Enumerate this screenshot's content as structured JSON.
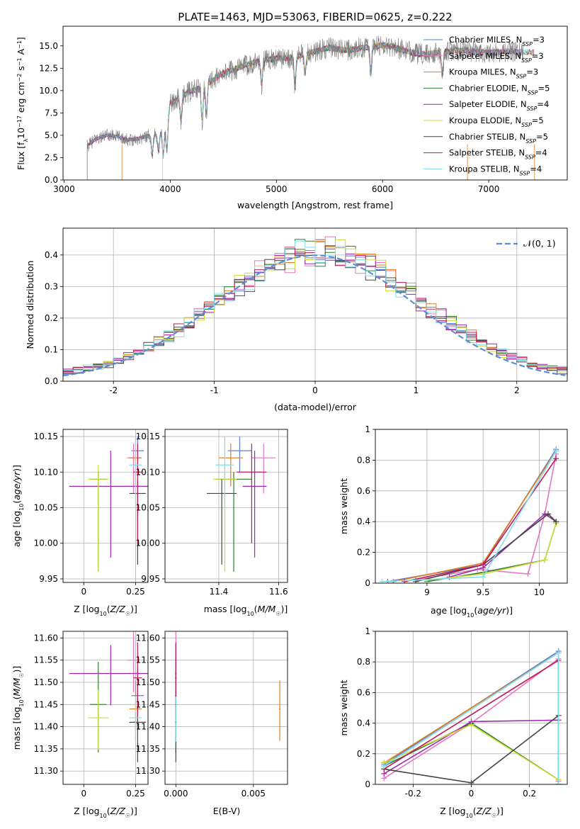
{
  "colors": {
    "Chabrier MILES": "#5b7fd9",
    "Salpeter MILES": "#e377c2",
    "Kroupa MILES": "#e07b1a",
    "Chabrier ELODIE": "#2e7d32",
    "Salpeter ELODIE": "#9c27b0",
    "Kroupa ELODIE": "#cddc39",
    "Chabrier STELIB": "#444444",
    "Salpeter STELIB": "#c2185b",
    "Kroupa STELIB": "#80deea",
    "normal": "#5b8ed6",
    "spectrum": "#7f7f7f"
  },
  "chart_data": [
    {
      "id": "spectrum",
      "type": "line",
      "title": "PLATE=1463, MJD=53063, FIBERID=0625, z=0.222",
      "xlabel": "wavelength [Angstrom, rest frame]",
      "ylabel": "Flux [f_λ10^-17 erg cm^-2 s^-1 A^-1]",
      "xlim": [
        2990,
        7740
      ],
      "ylim": [
        0,
        17.2
      ],
      "xticks": [
        3000,
        4000,
        5000,
        6000,
        7000
      ],
      "yticks": [
        0.0,
        2.5,
        5.0,
        7.5,
        10.0,
        12.5,
        15.0
      ],
      "ytick_labels": [
        "0.0",
        "2.5",
        "5.0",
        "7.5",
        "10.0",
        "12.5",
        "15.0"
      ],
      "legend": "right",
      "legend_entries": [
        "Chabrier MILES, N_SSP=3",
        "Salpeter MILES, N_SSP=3",
        "Kroupa MILES, N_SSP=3",
        "Chabrier ELODIE, N_SSP=5",
        "Salpeter ELODIE, N_SSP=4",
        "Kroupa ELODIE, N_SSP=5",
        "Chabrier STELIB, N_SSP=5",
        "Salpeter STELIB, N_SSP=4",
        "Kroupa STELIB, N_SSP=4"
      ],
      "continuum_x": [
        3220,
        3300,
        3400,
        3500,
        3600,
        3700,
        3800,
        3900,
        3950,
        4000,
        4100,
        4200,
        4300,
        4400,
        4500,
        4600,
        4700,
        4800,
        4900,
        5000,
        5100,
        5200,
        5300,
        5400,
        5500,
        5600,
        5700,
        5800,
        5900,
        6000,
        6100,
        6200,
        6300,
        6400,
        6500,
        6600,
        6700,
        6800,
        6900,
        7000,
        7100,
        7200,
        7300,
        7400
      ],
      "continuum_y": [
        3.8,
        4.6,
        5.0,
        4.9,
        4.5,
        4.6,
        5.0,
        5.2,
        6.0,
        8.6,
        9.3,
        10.0,
        10.3,
        11.2,
        12.0,
        12.3,
        12.8,
        13.2,
        13.4,
        13.6,
        13.6,
        13.9,
        14.2,
        14.5,
        14.8,
        14.6,
        14.5,
        14.8,
        14.9,
        15.1,
        14.9,
        14.5,
        14.2,
        14.0,
        14.2,
        14.4,
        14.5,
        14.5,
        14.3,
        14.3,
        14.3,
        14.4,
        14.3,
        14.3
      ]
    },
    {
      "id": "residuals",
      "type": "step",
      "xlabel": "(data-model)/error",
      "ylabel": "Normed distribution",
      "xlim": [
        -2.5,
        2.5
      ],
      "ylim": [
        0,
        0.485
      ],
      "xticks": [
        -2,
        -1,
        0,
        1,
        2
      ],
      "yticks": [
        0.0,
        0.1,
        0.2,
        0.3,
        0.4
      ],
      "ytick_labels": [
        "0.0",
        "0.1",
        "0.2",
        "0.3",
        "0.4"
      ],
      "grid": true,
      "legend": "top-right",
      "normal_label": "𝒩(0, 1)"
    },
    {
      "id": "age-vs-Z",
      "type": "errorbar",
      "xlabel": "Z [log10(Z/Z☉)]",
      "ylabel": "age [log10(age/yr)]",
      "xlim": [
        -0.1,
        0.31
      ],
      "ylim": [
        9.945,
        10.16
      ],
      "xticks": [
        0.0,
        0.25
      ],
      "yticks": [
        9.95,
        10.0,
        10.05,
        10.1,
        10.15
      ],
      "ytick_labels": [
        "9.95",
        "10.00",
        "10.05",
        "10.10",
        "10.15"
      ],
      "grid": true
    },
    {
      "id": "age-vs-mass",
      "type": "errorbar",
      "xlabel": "mass [log10(M/M☉)]",
      "xlim": [
        11.22,
        11.63
      ],
      "ylim": [
        9.945,
        10.16
      ],
      "xticks": [
        11.4,
        11.6
      ],
      "yticks": [
        9.95,
        10.0,
        10.05,
        10.1,
        10.15
      ],
      "ytick_labels": [
        "9.95",
        "10.00",
        "10.05",
        "10.10",
        "10.15"
      ],
      "grid": true
    },
    {
      "id": "mass-weight-vs-age",
      "type": "line",
      "xlabel": "age [log10(age/yr)]",
      "ylabel": "mass weight",
      "xlim": [
        8.54,
        10.25
      ],
      "ylim": [
        0,
        1.0
      ],
      "xticks": [
        9.0,
        9.5,
        10.0
      ],
      "yticks": [
        0.0,
        0.2,
        0.4,
        0.6,
        0.8,
        1.0
      ],
      "grid": true
    },
    {
      "id": "mass-vs-Z",
      "type": "errorbar",
      "xlabel": "Z [log10(Z/Z☉)]",
      "ylabel": "mass [log10(M/M☉)]",
      "xlim": [
        -0.1,
        0.31
      ],
      "ylim": [
        11.27,
        11.615
      ],
      "xticks": [
        0.0,
        0.25
      ],
      "yticks": [
        11.3,
        11.35,
        11.4,
        11.45,
        11.5,
        11.55,
        11.6
      ],
      "ytick_labels": [
        "11.30",
        "11.35",
        "11.40",
        "11.45",
        "11.50",
        "11.55",
        "11.60"
      ],
      "grid": true
    },
    {
      "id": "mass-vs-EBV",
      "type": "errorbar",
      "xlabel": "E(B-V)",
      "xlim": [
        -0.0007,
        0.0072
      ],
      "ylim": [
        11.27,
        11.615
      ],
      "xticks": [
        0.0,
        0.005
      ],
      "xtick_labels": [
        "0.000",
        "0.005"
      ],
      "yticks": [
        11.3,
        11.35,
        11.4,
        11.45,
        11.5,
        11.55,
        11.6
      ],
      "ytick_labels": [
        "11.30",
        "11.35",
        "11.40",
        "11.45",
        "11.50",
        "11.55",
        "11.60"
      ],
      "grid": true
    },
    {
      "id": "mass-weight-vs-Z",
      "type": "line",
      "xlabel": "Z [log10(Z/Z☉)]",
      "ylabel": "mass weight",
      "xlim": [
        -0.33,
        0.33
      ],
      "ylim": [
        0,
        1.0
      ],
      "xticks": [
        -0.2,
        0.0,
        0.2
      ],
      "yticks": [
        0.0,
        0.2,
        0.4,
        0.6,
        0.8,
        1.0
      ],
      "grid": true
    }
  ],
  "models": [
    {
      "name": "Chabrier MILES",
      "Z": 0.26,
      "Zerr": 0.03,
      "age": 10.13,
      "ageerr": [
        0.03,
        0.02
      ],
      "mass": 11.47,
      "masserr": 0.04,
      "ebv": 0.0,
      "pw_age": [
        [
          8.65,
          0.01
        ],
        [
          9.5,
          0.12
        ],
        [
          10.15,
          0.87
        ]
      ],
      "pw_Z": [
        [
          -0.3,
          0.13
        ],
        [
          0.3,
          0.87
        ],
        [
          0.3,
          0.0
        ]
      ]
    },
    {
      "name": "Salpeter MILES",
      "Z": 0.24,
      "Zerr": 0.03,
      "age": 10.12,
      "ageerr": [
        0.05,
        0.02
      ],
      "mass": 11.55,
      "masserr": 0.04,
      "ebv": 0.0,
      "pw_age": [
        [
          8.9,
          0.02
        ],
        [
          9.45,
          0.09
        ],
        [
          9.9,
          0.06
        ],
        [
          10.05,
          0.45
        ],
        [
          10.15,
          0.84
        ]
      ],
      "pw_Z": [
        [
          -0.3,
          0.04
        ],
        [
          0.0,
          0.4
        ],
        [
          0.3,
          0.82
        ],
        [
          0.3,
          0.02
        ]
      ]
    },
    {
      "name": "Kroupa MILES",
      "Z": 0.25,
      "Zerr": 0.03,
      "age": 10.12,
      "ageerr": [
        0.04,
        0.02
      ],
      "mass": 11.44,
      "masserr": 0.04,
      "ebv": 0.0067,
      "pw_age": [
        [
          8.7,
          0.01
        ],
        [
          9.5,
          0.13
        ],
        [
          10.15,
          0.86
        ]
      ],
      "pw_Z": [
        [
          -0.3,
          0.14
        ],
        [
          0.3,
          0.86
        ],
        [
          0.3,
          0.0
        ]
      ]
    },
    {
      "name": "Chabrier ELODIE",
      "Z": 0.07,
      "Zerr": 0.04,
      "age": 10.09,
      "ageerr": [
        0.13,
        0.01
      ],
      "mass": 11.45,
      "masserr": 0.06,
      "ebv": 0.0,
      "pw_age": [
        [
          9.0,
          0.01
        ],
        [
          9.5,
          0.07
        ],
        [
          10.05,
          0.15
        ],
        [
          10.15,
          0.39
        ]
      ],
      "pw_Z": [
        [
          -0.3,
          0.12
        ],
        [
          0.0,
          0.4
        ],
        [
          0.3,
          0.03
        ]
      ]
    },
    {
      "name": "Salpeter ELODIE",
      "Z": 0.13,
      "Zerr": 0.2,
      "age": 10.08,
      "ageerr": [
        0.1,
        0.05
      ],
      "mass": 11.52,
      "masserr": 0.04,
      "ebv": 0.0,
      "pw_age": [
        [
          9.2,
          0.04
        ],
        [
          9.5,
          0.1
        ],
        [
          10.05,
          0.45
        ],
        [
          10.15,
          0.4
        ]
      ],
      "pw_Z": [
        [
          -0.3,
          0.07
        ],
        [
          0.0,
          0.41
        ],
        [
          0.3,
          0.42
        ]
      ]
    },
    {
      "name": "Kroupa ELODIE",
      "Z": 0.07,
      "Zerr": 0.05,
      "age": 10.09,
      "ageerr": [
        0.13,
        0.02
      ],
      "mass": 11.42,
      "masserr": 0.04,
      "ebv": 0.0,
      "pw_age": [
        [
          9.0,
          0.02
        ],
        [
          9.5,
          0.06
        ],
        [
          10.05,
          0.15
        ],
        [
          10.15,
          0.39
        ]
      ],
      "pw_Z": [
        [
          -0.3,
          0.14
        ],
        [
          0.0,
          0.39
        ],
        [
          0.3,
          0.03
        ]
      ]
    },
    {
      "name": "Chabrier STELIB",
      "Z": 0.26,
      "Zerr": 0.04,
      "age": 10.07,
      "ageerr": [
        0.1,
        0.02
      ],
      "mass": 11.41,
      "masserr": 0.05,
      "ebv": 0.0,
      "pw_age": [
        [
          8.9,
          0.01
        ],
        [
          9.5,
          0.12
        ],
        [
          10.08,
          0.45
        ],
        [
          10.15,
          0.4
        ]
      ],
      "pw_Z": [
        [
          -0.3,
          0.1
        ],
        [
          0.0,
          0.01
        ],
        [
          0.3,
          0.45
        ]
      ]
    },
    {
      "name": "Salpeter STELIB",
      "Z": 0.26,
      "Zerr": 0.02,
      "age": 10.1,
      "ageerr": [
        0.1,
        0.04
      ],
      "mass": 11.51,
      "masserr": 0.05,
      "ebv": 0.0,
      "pw_age": [
        [
          8.8,
          0.01
        ],
        [
          9.5,
          0.12
        ],
        [
          10.15,
          0.81
        ]
      ],
      "pw_Z": [
        [
          -0.3,
          0.1
        ],
        [
          0.3,
          0.81
        ],
        [
          0.3,
          0.0
        ]
      ]
    },
    {
      "name": "Kroupa STELIB",
      "Z": 0.25,
      "Zerr": 0.03,
      "age": 10.11,
      "ageerr": [
        0.06,
        0.04
      ],
      "mass": 11.42,
      "masserr": 0.03,
      "ebv": 0.0,
      "pw_age": [
        [
          8.6,
          0.01
        ],
        [
          9.5,
          0.04
        ],
        [
          10.15,
          0.86
        ]
      ],
      "pw_Z": [
        [
          -0.3,
          0.12
        ],
        [
          0.3,
          0.86
        ],
        [
          0.3,
          0.0
        ]
      ]
    }
  ]
}
